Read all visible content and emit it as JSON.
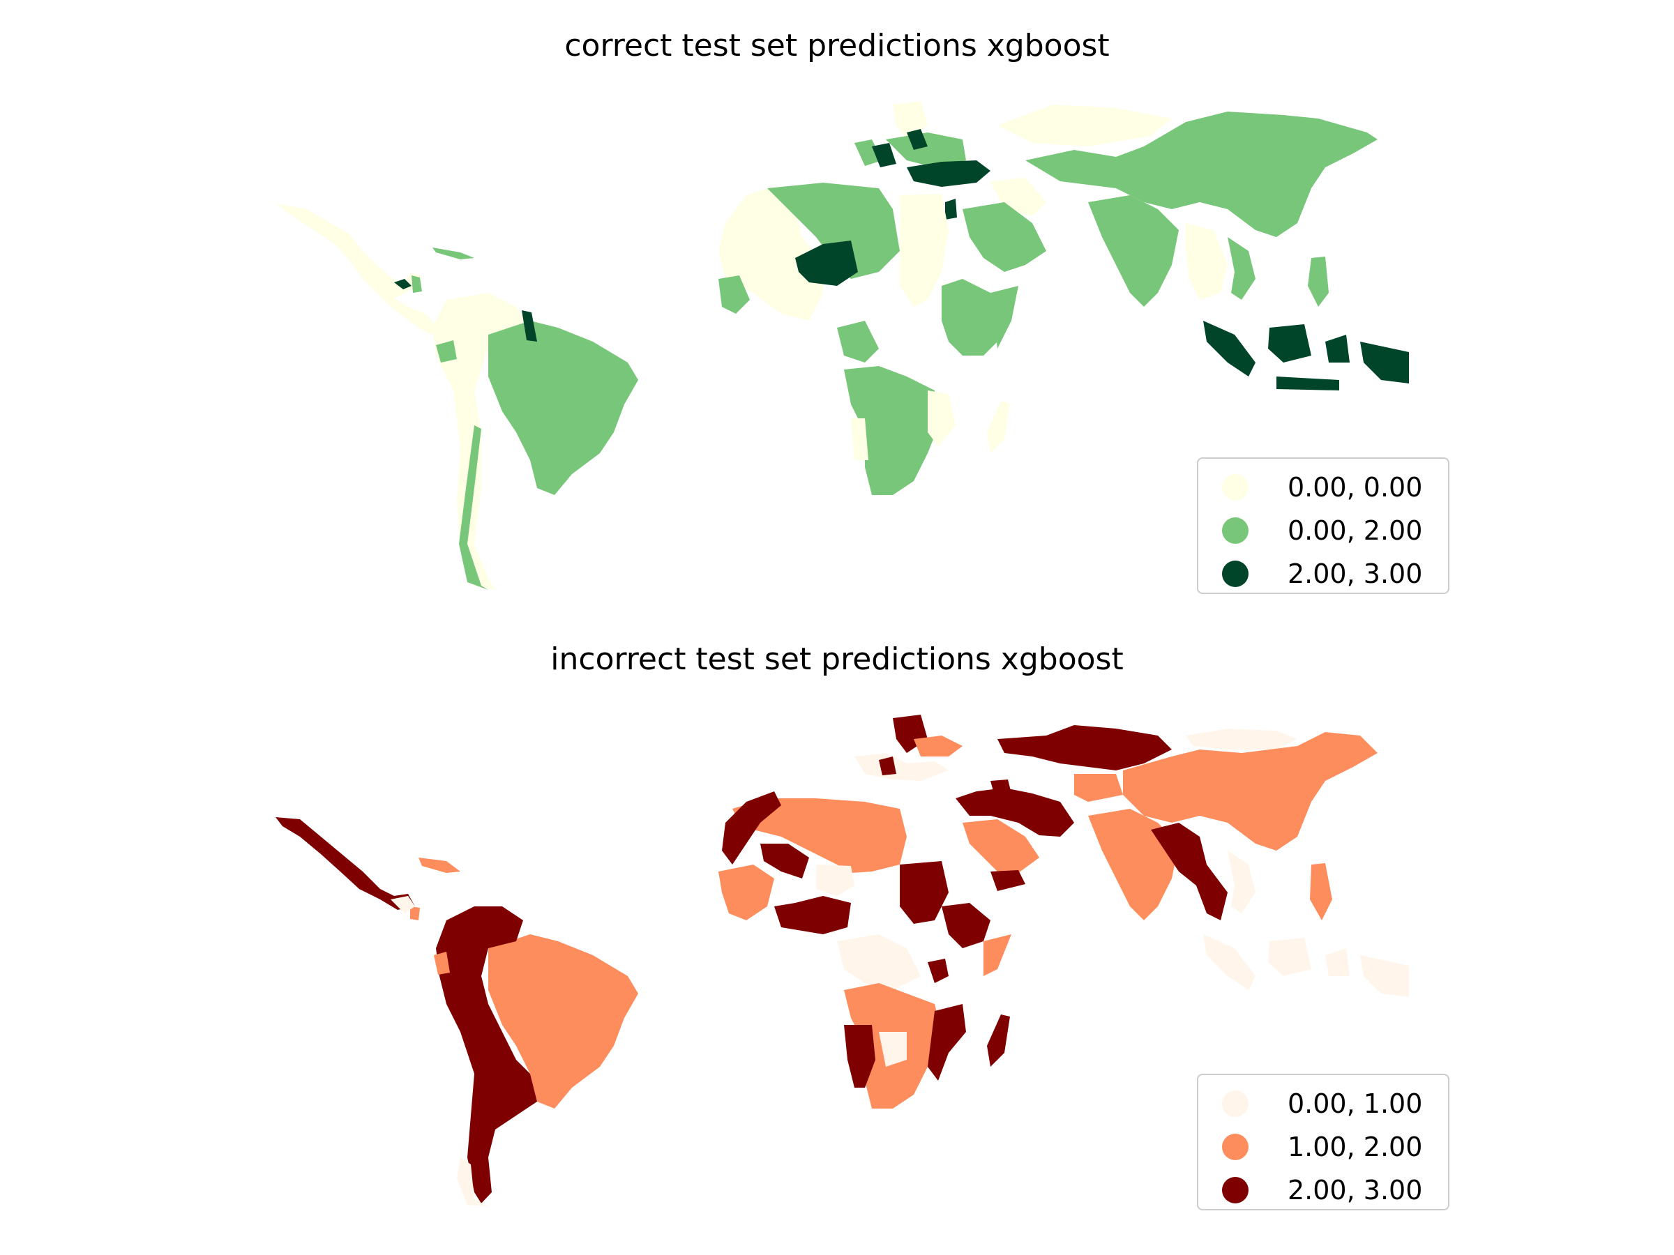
{
  "maps": [
    {
      "title": "correct test set predictions xgboost",
      "legend": [
        {
          "label": "0.00, 0.00",
          "color": "#ffffe5"
        },
        {
          "label": "0.00, 2.00",
          "color": "#78c679"
        },
        {
          "label": "2.00, 3.00",
          "color": "#004529"
        }
      ]
    },
    {
      "title": "incorrect test set predictions xgboost",
      "legend": [
        {
          "label": "0.00, 1.00",
          "color": "#fff5eb"
        },
        {
          "label": "1.00, 2.00",
          "color": "#fd8d5c"
        },
        {
          "label": "2.00, 3.00",
          "color": "#7f0000"
        }
      ]
    }
  ]
}
